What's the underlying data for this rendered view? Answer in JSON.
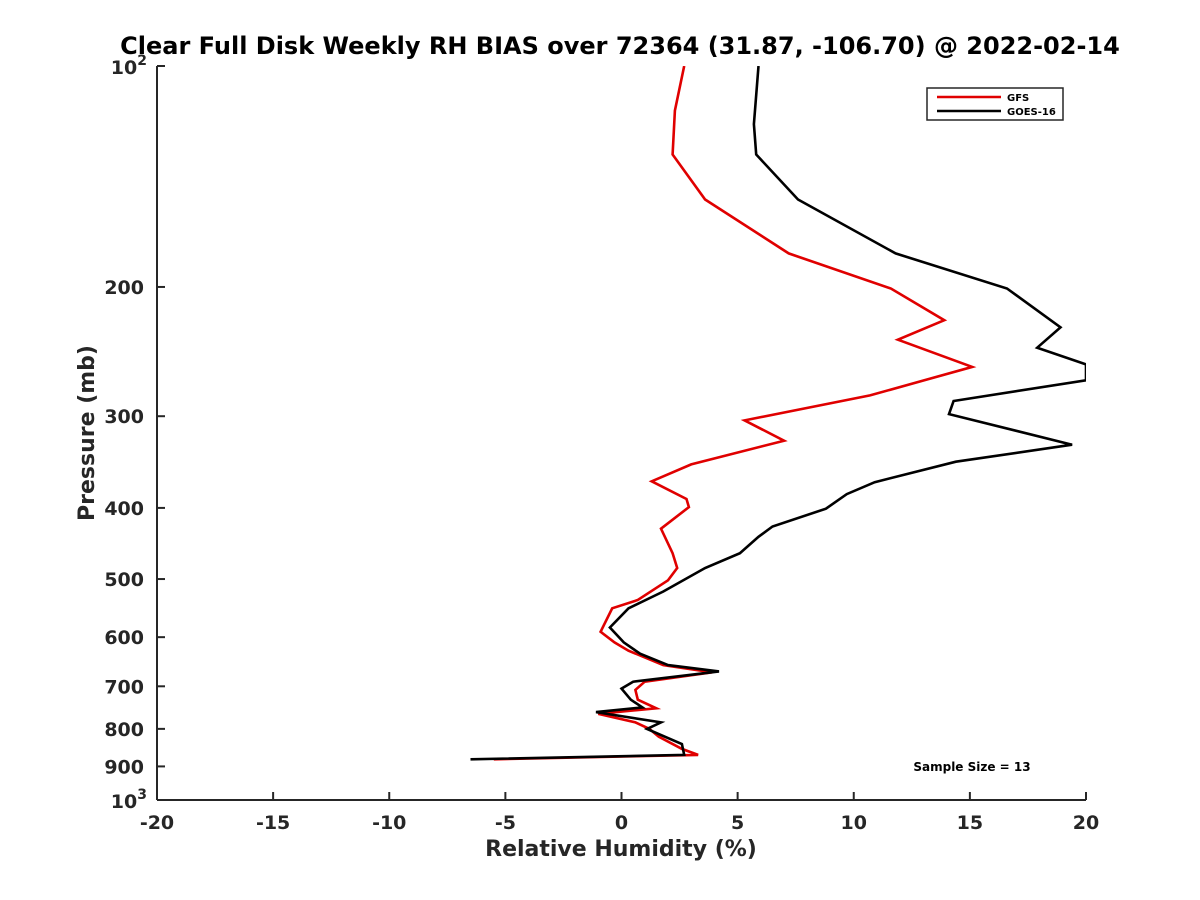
{
  "chart_data": {
    "type": "line",
    "title": "Clear Full Disk Weekly RH BIAS over 72364 (31.87, -106.70) @ 2022-02-14",
    "xlabel": "Relative Humidity (%)",
    "ylabel": "Pressure (mb)",
    "xlim": [
      -20,
      20
    ],
    "ylim": [
      100,
      1000
    ],
    "y_scale": "log",
    "y_reversed": true,
    "grid": false,
    "x_ticks": [
      -20,
      -15,
      -10,
      -5,
      0,
      5,
      10,
      15,
      20
    ],
    "x_tick_labels": [
      "-20",
      "-15",
      "-10",
      "-5",
      "0",
      "5",
      "10",
      "15",
      "20"
    ],
    "y_ticks": [
      {
        "value": 100,
        "base": "10",
        "exp": "2",
        "label": ""
      },
      {
        "value": 200,
        "label": "200"
      },
      {
        "value": 300,
        "label": "300"
      },
      {
        "value": 400,
        "label": "400"
      },
      {
        "value": 500,
        "label": "500"
      },
      {
        "value": 600,
        "label": "600"
      },
      {
        "value": 700,
        "label": "700"
      },
      {
        "value": 800,
        "label": "800"
      },
      {
        "value": 900,
        "label": "900"
      },
      {
        "value": 1000,
        "base": "10",
        "exp": "3",
        "label": ""
      }
    ],
    "legend_position": "top-right",
    "annotation": "Sample Size = 13",
    "series": [
      {
        "name": "GFS",
        "color": "#e00000",
        "points": [
          [
            2.7,
            100
          ],
          [
            2.3,
            115
          ],
          [
            2.2,
            132
          ],
          [
            3.6,
            152
          ],
          [
            7.2,
            180
          ],
          [
            11.6,
            201
          ],
          [
            13.9,
            222
          ],
          [
            11.9,
            236
          ],
          [
            15.1,
            257
          ],
          [
            10.7,
            281
          ],
          [
            5.3,
            304
          ],
          [
            7.0,
            324
          ],
          [
            3.0,
            349
          ],
          [
            1.3,
            368
          ],
          [
            2.8,
            389
          ],
          [
            2.9,
            399
          ],
          [
            1.7,
            427
          ],
          [
            2.2,
            461
          ],
          [
            2.4,
            483
          ],
          [
            2.0,
            502
          ],
          [
            0.7,
            534
          ],
          [
            -0.4,
            548
          ],
          [
            -0.9,
            590
          ],
          [
            -0.3,
            610
          ],
          [
            0.3,
            626
          ],
          [
            1.8,
            655
          ],
          [
            3.9,
            670
          ],
          [
            1.0,
            690
          ],
          [
            0.6,
            708
          ],
          [
            0.7,
            730
          ],
          [
            1.5,
            750
          ],
          [
            -1.0,
            763
          ],
          [
            0.6,
            784
          ],
          [
            1.2,
            800
          ],
          [
            1.6,
            820
          ],
          [
            2.6,
            852
          ],
          [
            3.3,
            868
          ],
          [
            -5.5,
            880
          ]
        ]
      },
      {
        "name": "GOES-16",
        "color": "#000000",
        "points": [
          [
            5.9,
            100
          ],
          [
            5.7,
            120
          ],
          [
            5.8,
            132
          ],
          [
            7.6,
            152
          ],
          [
            11.8,
            180
          ],
          [
            16.6,
            201
          ],
          [
            18.9,
            227
          ],
          [
            17.9,
            242
          ],
          [
            20.0,
            255
          ],
          [
            20.0,
            268
          ],
          [
            14.3,
            286
          ],
          [
            14.1,
            298
          ],
          [
            19.4,
            328
          ],
          [
            14.4,
            346
          ],
          [
            10.9,
            369
          ],
          [
            9.7,
            383
          ],
          [
            8.8,
            401
          ],
          [
            6.5,
            424
          ],
          [
            5.9,
            438
          ],
          [
            5.1,
            461
          ],
          [
            3.6,
            483
          ],
          [
            1.8,
            520
          ],
          [
            0.3,
            548
          ],
          [
            -0.5,
            582
          ],
          [
            0.1,
            610
          ],
          [
            0.8,
            632
          ],
          [
            2.0,
            655
          ],
          [
            4.2,
            668
          ],
          [
            0.5,
            690
          ],
          [
            0.0,
            705
          ],
          [
            0.4,
            730
          ],
          [
            0.9,
            748
          ],
          [
            -1.1,
            759
          ],
          [
            1.7,
            784
          ],
          [
            1.1,
            800
          ],
          [
            2.6,
            839
          ],
          [
            2.7,
            868
          ],
          [
            -6.5,
            880
          ]
        ]
      }
    ]
  }
}
